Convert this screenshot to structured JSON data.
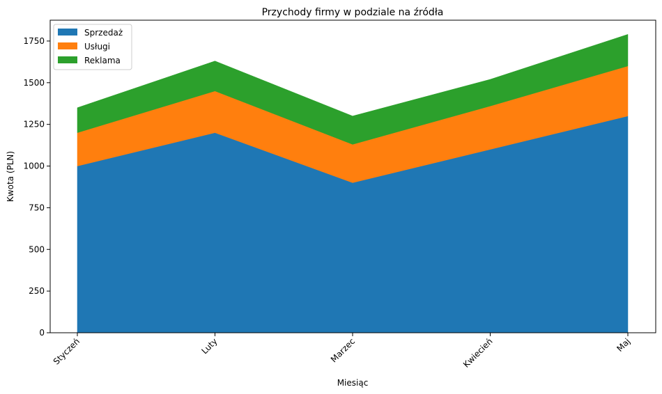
{
  "chart_data": {
    "type": "area",
    "stacked": true,
    "title": "Przychody firmy w podziale na źródła",
    "xlabel": "Miesiąc",
    "ylabel": "Kwota (PLN)",
    "categories": [
      "Styczeń",
      "Luty",
      "Marzec",
      "Kwiecień",
      "Maj"
    ],
    "series": [
      {
        "name": "Sprzedaż",
        "color": "#1f77b4",
        "values": [
          1000,
          1200,
          900,
          1100,
          1300
        ]
      },
      {
        "name": "Usługi",
        "color": "#ff7f0e",
        "values": [
          200,
          250,
          230,
          260,
          300
        ]
      },
      {
        "name": "Reklama",
        "color": "#2ca02c",
        "values": [
          150,
          180,
          170,
          160,
          190
        ]
      }
    ],
    "ylim": [
      0,
      1875
    ],
    "yticks": [
      0,
      250,
      500,
      750,
      1000,
      1250,
      1500,
      1750
    ],
    "grid": false,
    "legend_position": "upper-left",
    "xtick_rotation": 45
  }
}
